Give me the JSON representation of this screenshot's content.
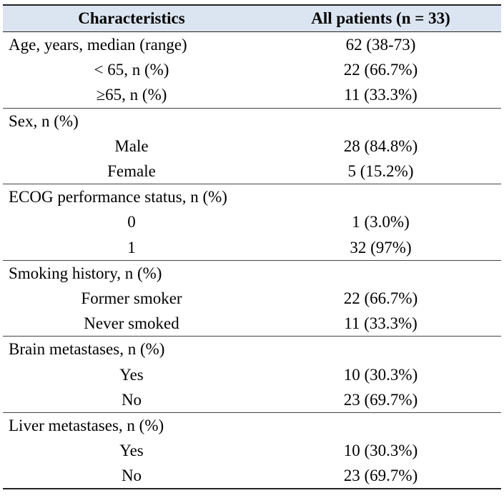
{
  "table": {
    "header": [
      "Characteristics",
      "All patients (n = 33)"
    ],
    "groups": [
      {
        "title": "Age, years, median (range)",
        "value": "62 (38-73)",
        "rows": [
          {
            "label": "< 65, n (%)",
            "value": "22 (66.7%)"
          },
          {
            "label": "≥65, n (%)",
            "value": "11 (33.3%)"
          }
        ]
      },
      {
        "title": "Sex, n (%)",
        "rows": [
          {
            "label": "Male",
            "value": "28 (84.8%)"
          },
          {
            "label": "Female",
            "value": "5 (15.2%)"
          }
        ]
      },
      {
        "title": "ECOG performance status, n (%)",
        "rows": [
          {
            "label": "0",
            "value": "1 (3.0%)"
          },
          {
            "label": "1",
            "value": "32 (97%)"
          }
        ]
      },
      {
        "title": "Smoking history, n (%)",
        "rows": [
          {
            "label": "Former smoker",
            "value": "22 (66.7%)"
          },
          {
            "label": "Never smoked",
            "value": "11 (33.3%)"
          }
        ]
      },
      {
        "title": "Brain metastases, n (%)",
        "rows": [
          {
            "label": "Yes",
            "value": "10 (30.3%)"
          },
          {
            "label": "No",
            "value": "23 (69.7%)"
          }
        ]
      },
      {
        "title": "Liver metastases, n (%)",
        "rows": [
          {
            "label": "Yes",
            "value": "10 (30.3%)"
          },
          {
            "label": "No",
            "value": "23 (69.7%)"
          }
        ]
      }
    ]
  }
}
